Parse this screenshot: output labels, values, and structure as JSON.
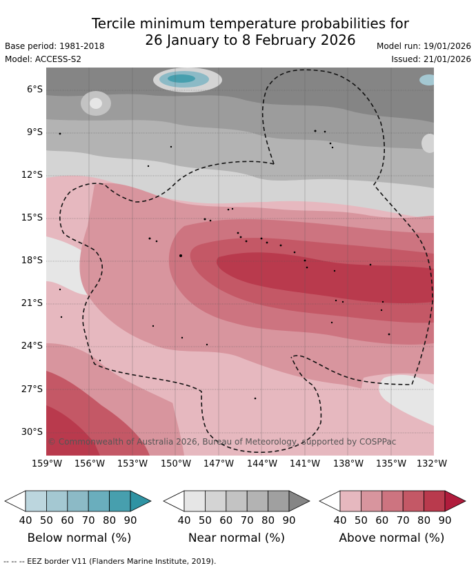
{
  "title_line1": "Tercile minimum temperature probabilities for",
  "title_line2": "26 January to 8 February 2026",
  "base_period": "Base period: 1981-2018",
  "model": "Model: ACCESS-S2",
  "model_run": "Model run: 19/01/2026",
  "issued": "Issued: 21/01/2026",
  "lat_labels": [
    "6°S",
    "9°S",
    "12°S",
    "15°S",
    "18°S",
    "21°S",
    "24°S",
    "27°S",
    "30°S"
  ],
  "lon_labels": [
    "159°W",
    "156°W",
    "153°W",
    "150°W",
    "147°W",
    "144°W",
    "141°W",
    "138°W",
    "135°W",
    "132°W"
  ],
  "copyright": "© Commonwealth of Australia 2026, Bureau of Meteorology, supported by COSPPac",
  "colorbars": [
    {
      "title": "Below normal (%)",
      "ticks": [
        "40",
        "50",
        "60",
        "70",
        "80",
        "90"
      ],
      "colors": [
        "#ffffff",
        "#bcd6de",
        "#a4c8d2",
        "#8cbac6",
        "#6aaebd",
        "#479fae",
        "#2f93a3"
      ]
    },
    {
      "title": "Near normal (%)",
      "ticks": [
        "40",
        "50",
        "60",
        "70",
        "80",
        "90"
      ],
      "colors": [
        "#ffffff",
        "#e6e6e6",
        "#d4d4d4",
        "#c3c3c3",
        "#b3b3b3",
        "#a0a0a0",
        "#858585"
      ]
    },
    {
      "title": "Above normal (%)",
      "ticks": [
        "40",
        "50",
        "60",
        "70",
        "80",
        "90"
      ],
      "colors": [
        "#ffffff",
        "#e6b8bf",
        "#d8959e",
        "#cd7480",
        "#c45866",
        "#b93a4d",
        "#b01c3c"
      ]
    }
  ],
  "footnote": "--  --  -- EEZ border V11 (Flanders Marine Institute, 2019)."
}
